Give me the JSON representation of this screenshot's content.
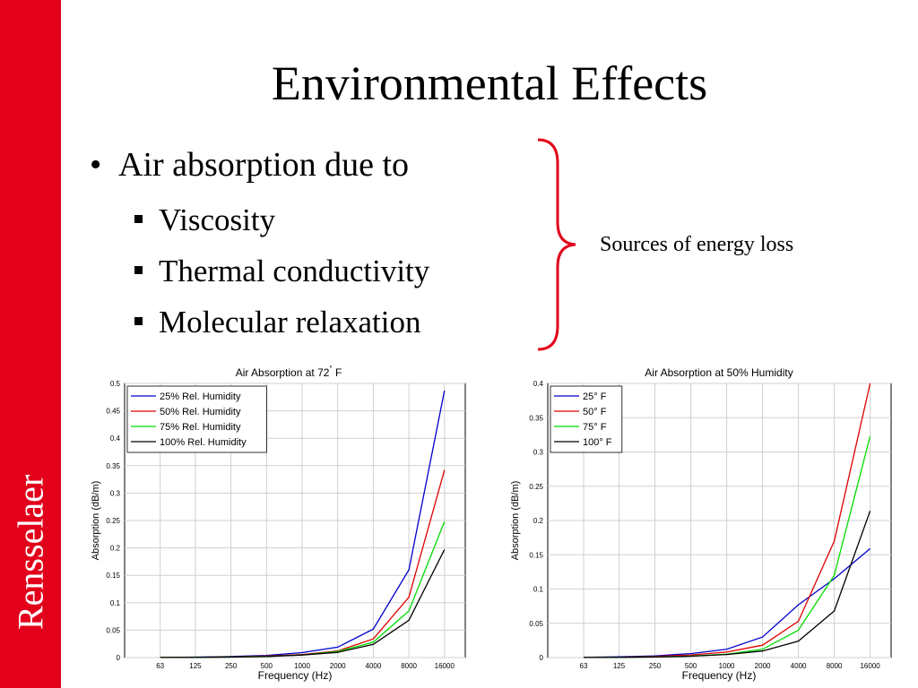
{
  "slide": {
    "title": "Environmental Effects",
    "sidebar_text": "Rensselaer",
    "accent_color": "#e2001a",
    "bullet": {
      "text": "Air absorption due to",
      "subitems": [
        "Viscosity",
        "Thermal conductivity",
        "Molecular relaxation"
      ]
    },
    "brace_label": "Sources of energy loss"
  },
  "chart_data": [
    {
      "type": "line",
      "title": "Air Absorption at 72",
      "title_suffix": "F",
      "title_degree": "°",
      "xlabel": "Frequency (Hz)",
      "ylabel": "Absorption (dB/m)",
      "x_scale": "log",
      "x_ticks": [
        63,
        125,
        250,
        500,
        1000,
        2000,
        4000,
        8000,
        16000
      ],
      "ylim": [
        0,
        0.5
      ],
      "y_ticks": [
        0,
        0.05,
        0.1,
        0.15,
        0.2,
        0.25,
        0.3,
        0.35,
        0.4,
        0.45,
        0.5
      ],
      "grid": true,
      "legend": "top-left",
      "x": [
        63,
        125,
        250,
        500,
        1000,
        2000,
        4000,
        8000,
        16000
      ],
      "series": [
        {
          "name": "25% Rel. Humidity",
          "color": "#0000cc",
          "values": [
            0.0002,
            0.0008,
            0.0019,
            0.004,
            0.009,
            0.019,
            0.052,
            0.16,
            0.487
          ]
        },
        {
          "name": "50% Rel. Humidity",
          "color": "#e00000",
          "values": [
            0.0001,
            0.0004,
            0.0012,
            0.0027,
            0.0055,
            0.012,
            0.034,
            0.11,
            0.342
          ]
        },
        {
          "name": "75% Rel. Humidity",
          "color": "#00dd00",
          "values": [
            0.0001,
            0.0003,
            0.0009,
            0.0022,
            0.0048,
            0.011,
            0.028,
            0.085,
            0.248
          ]
        },
        {
          "name": "100% Rel. Humidity",
          "color": "#000000",
          "values": [
            0.0001,
            0.0003,
            0.0008,
            0.002,
            0.0045,
            0.0095,
            0.024,
            0.068,
            0.197
          ]
        }
      ]
    },
    {
      "type": "line",
      "title": "Air Absorption at 50% Humidity",
      "xlabel": "Frequency (Hz)",
      "ylabel": "Absorption (dB/m)",
      "x_scale": "log",
      "x_ticks": [
        63,
        125,
        250,
        500,
        1000,
        2000,
        4000,
        8000,
        16000
      ],
      "ylim": [
        0,
        0.4
      ],
      "y_ticks": [
        0,
        0.05,
        0.1,
        0.15,
        0.2,
        0.25,
        0.3,
        0.35,
        0.4
      ],
      "grid": true,
      "legend": "top-left",
      "x": [
        63,
        125,
        250,
        500,
        1000,
        2000,
        4000,
        8000,
        16000
      ],
      "series": [
        {
          "name": "25° F",
          "color": "#0000cc",
          "values": [
            0.0003,
            0.001,
            0.0025,
            0.0058,
            0.012,
            0.03,
            0.077,
            0.115,
            0.159
          ]
        },
        {
          "name": "50° F",
          "color": "#e00000",
          "values": [
            0.0001,
            0.0005,
            0.0016,
            0.0038,
            0.008,
            0.018,
            0.053,
            0.17,
            0.4
          ]
        },
        {
          "name": "75° F",
          "color": "#00dd00",
          "values": [
            0.0001,
            0.0003,
            0.0009,
            0.0022,
            0.0048,
            0.012,
            0.04,
            0.12,
            0.323
          ]
        },
        {
          "name": "100° F",
          "color": "#000000",
          "values": [
            0.0001,
            0.0002,
            0.0008,
            0.002,
            0.0045,
            0.0095,
            0.024,
            0.068,
            0.214
          ]
        }
      ]
    }
  ]
}
